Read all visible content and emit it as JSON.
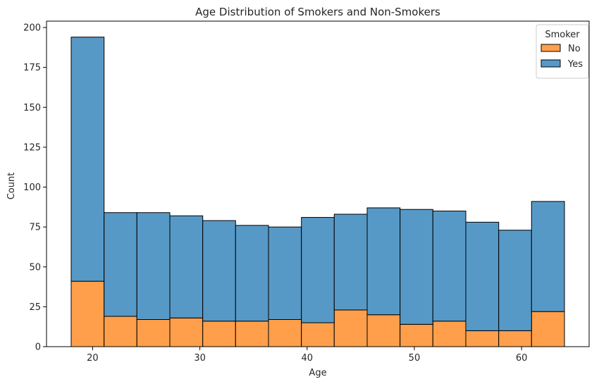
{
  "chart_data": {
    "type": "bar",
    "subtype": "stacked-histogram",
    "title": "Age Distribution of Smokers and Non-Smokers",
    "xlabel": "Age",
    "ylabel": "Count",
    "xlim": [
      15.7,
      66.3
    ],
    "ylim": [
      0,
      204
    ],
    "x_ticks": [
      20,
      30,
      40,
      50,
      60
    ],
    "y_ticks": [
      0,
      25,
      50,
      75,
      100,
      125,
      150,
      175,
      200
    ],
    "bin_edges": [
      18,
      21.07,
      24.13,
      27.2,
      30.27,
      33.33,
      36.4,
      39.47,
      42.53,
      45.6,
      48.67,
      51.73,
      54.8,
      57.87,
      60.93,
      64
    ],
    "series": [
      {
        "name": "No",
        "color": "#FF9F4B",
        "values": [
          41,
          19,
          17,
          18,
          16,
          16,
          17,
          15,
          23,
          20,
          14,
          16,
          10,
          10,
          22
        ]
      },
      {
        "name": "Yes",
        "color": "#5799C6",
        "values": [
          153,
          65,
          67,
          64,
          63,
          60,
          58,
          66,
          60,
          67,
          72,
          69,
          68,
          63,
          69
        ]
      }
    ],
    "legend": {
      "title": "Smoker",
      "position": "top-right",
      "entries": [
        "No",
        "Yes"
      ]
    },
    "grid": false
  }
}
